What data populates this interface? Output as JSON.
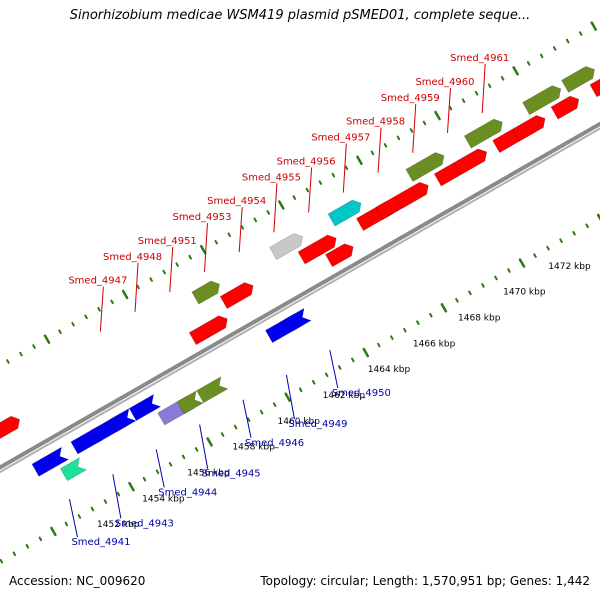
{
  "title": "Sinorhizobium medicae WSM419 plasmid pSMED01, complete seque...",
  "footer": {
    "accession": "Accession: NC_009620",
    "topology": "Topology: circular; Length: 1,570,951 bp; Genes: 1,442"
  },
  "colors": {
    "backbone": "#8a8a8a",
    "tick": "#2a7a12",
    "top_label": "#cc0000",
    "bottom_label": "#0000aa",
    "red": "#ff0000",
    "blue": "#0000ee",
    "olive": "#6b8e23",
    "gray": "#c8c8c8",
    "cyan": "#00c8c8",
    "lavender": "#8a7ad8",
    "mint": "#1fe09a"
  },
  "map": {
    "kbp_labels": [
      "1452 kbp",
      "1454 kbp",
      "1456 kbp",
      "1458 kbp",
      "1460 kbp",
      "1462 kbp",
      "1464 kbp",
      "1466 kbp",
      "1468 kbp",
      "1470 kbp",
      "1472 kbp"
    ],
    "top_gene_labels": [
      "Smed_4947",
      "Smed_4948",
      "Smed_4951",
      "Smed_4953",
      "Smed_4954",
      "Smed_4955",
      "Smed_4956",
      "Smed_4957",
      "Smed_4958",
      "Smed_4959",
      "Smed_4960",
      "Smed_4961"
    ],
    "bottom_gene_labels": [
      "Smed_4941",
      "Smed_4943",
      "Smed_4944",
      "Smed_4945",
      "Smed_4946",
      "Smed_4949",
      "Smed_4950"
    ],
    "features": [
      {
        "color": "olive",
        "track": 3
      },
      {
        "color": "red",
        "track": 2
      },
      {
        "color": "blue",
        "track": -1
      },
      {
        "color": "mint",
        "track": -2
      },
      {
        "color": "blue",
        "track": -1
      },
      {
        "color": "blue",
        "track": -1
      },
      {
        "color": "blue",
        "track": -1
      },
      {
        "color": "blue",
        "track": -1
      },
      {
        "color": "lavender",
        "track": -2
      },
      {
        "color": "olive",
        "track": -2
      },
      {
        "color": "olive",
        "track": -2
      },
      {
        "color": "red",
        "track": 1
      },
      {
        "color": "olive",
        "track": 3
      },
      {
        "color": "red",
        "track": 2
      },
      {
        "color": "blue",
        "track": -1
      },
      {
        "color": "blue",
        "track": -1
      },
      {
        "color": "gray",
        "track": 3
      },
      {
        "color": "red",
        "track": 2
      },
      {
        "color": "red",
        "track": 1
      },
      {
        "color": "cyan",
        "track": 3
      },
      {
        "color": "red",
        "track": 2
      },
      {
        "color": "red",
        "track": 2
      },
      {
        "color": "red",
        "track": 2
      },
      {
        "color": "olive",
        "track": 3
      },
      {
        "color": "red",
        "track": 2
      },
      {
        "color": "red",
        "track": 2
      },
      {
        "color": "olive",
        "track": 3
      },
      {
        "color": "red",
        "track": 2
      },
      {
        "color": "red",
        "track": 2
      },
      {
        "color": "olive",
        "track": 3
      },
      {
        "color": "red",
        "track": 2
      },
      {
        "color": "olive",
        "track": 3
      },
      {
        "color": "red",
        "track": 2
      }
    ]
  }
}
